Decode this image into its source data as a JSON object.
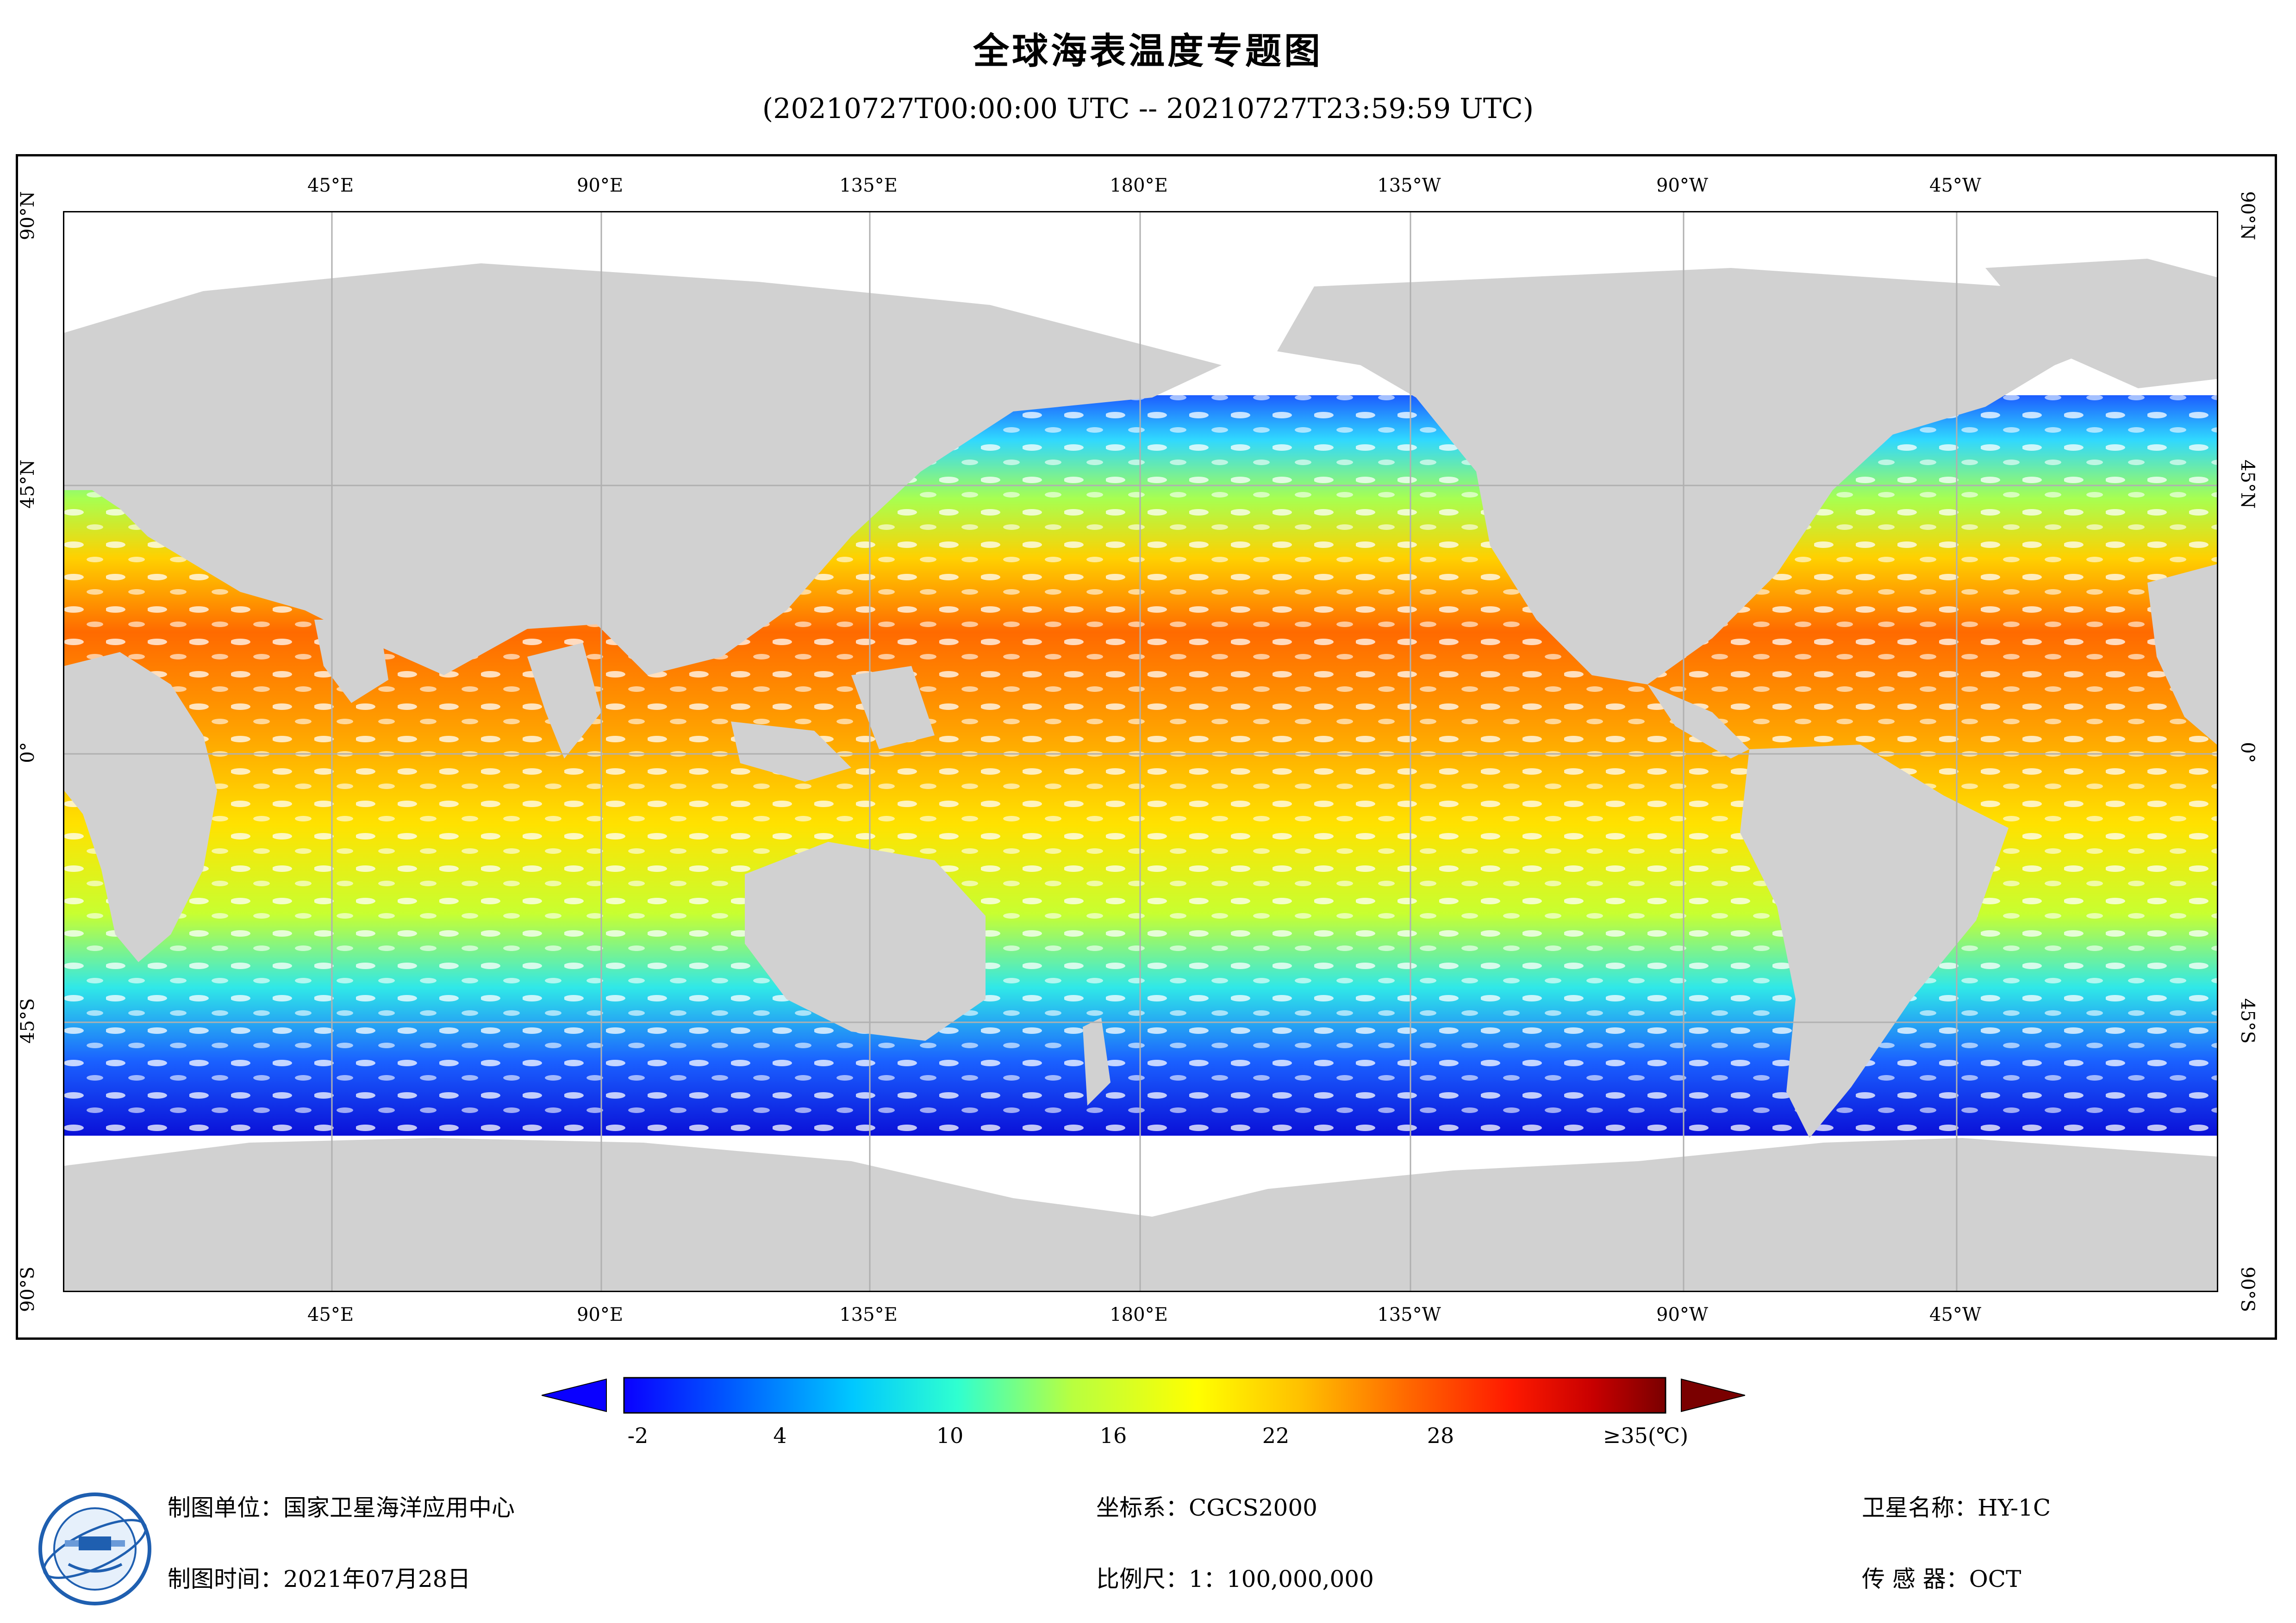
{
  "header": {
    "title": "全球海表温度专题图",
    "subtitle": "(20210727T00:00:00 UTC -- 20210727T23:59:59 UTC)"
  },
  "map": {
    "longitude_labels": [
      "45°E",
      "90°E",
      "135°E",
      "180°E",
      "135°W",
      "90°W",
      "45°W"
    ],
    "latitude_labels": [
      "90°N",
      "45°N",
      "0°",
      "45°S",
      "90°S"
    ],
    "colors": {
      "land": "#d1d1d1",
      "no_data": "#ffffff",
      "grid": "#b0b0b0",
      "frame": "#000000"
    }
  },
  "legend": {
    "tick_labels": [
      "-2",
      "4",
      "10",
      "16",
      "22",
      "28",
      "≥35(℃)"
    ],
    "color_stops": [
      "#0a00ff",
      "#0058ff",
      "#00c8ff",
      "#2fffd0",
      "#b8ff40",
      "#ffff00",
      "#ffc000",
      "#ff6a00",
      "#ff1a00",
      "#c80000",
      "#7a0000"
    ],
    "under_color": "#0a00ff",
    "over_color": "#7a0000"
  },
  "footer": {
    "producer": "制图单位：国家卫星海洋应用中心",
    "date": "制图时间：2021年07月28日",
    "crs": "坐标系：CGCS2000",
    "scale": "比例尺：1：100,000,000",
    "satellite": "卫星名称：HY-1C",
    "sensor": "传  感  器：OCT"
  }
}
